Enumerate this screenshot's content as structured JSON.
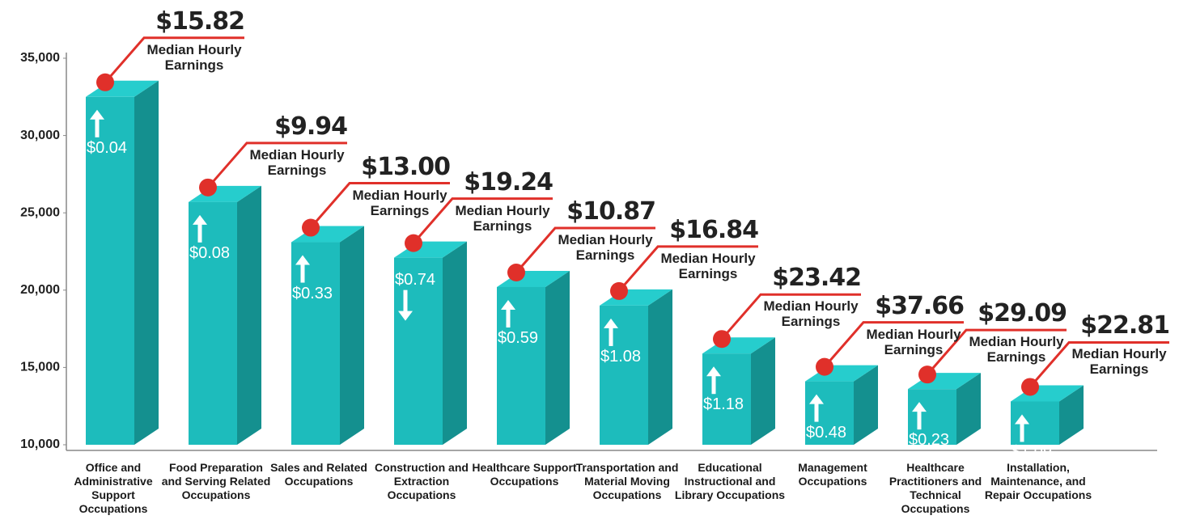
{
  "chart_data": {
    "type": "bar3d",
    "categories": [
      "Office and Administrative Support Occupations",
      "Food Preparation and Serving Related Occupations",
      "Sales and Related Occupations",
      "Construction and Extraction Occupations",
      "Healthcare Support Occupations",
      "Transportation and Material Moving Occupations",
      "Educational Instructional and Library Occupations",
      "Management Occupations",
      "Healthcare Practitioners and Technical Occupations",
      "Installation, Maintenance, and Repair Occupations"
    ],
    "values": [
      32500,
      25700,
      23100,
      22100,
      20200,
      19000,
      15900,
      14100,
      13600,
      12800
    ],
    "color": "#1dbcbc",
    "side_color": "#14908f",
    "top_color": "#26cdcd",
    "callout_color": "#e0302a",
    "ylim": [
      10000,
      35000
    ],
    "yticks": [
      {
        "value": 10000,
        "label": "10,000"
      },
      {
        "value": 15000,
        "label": "15,000"
      },
      {
        "value": 20000,
        "label": "20,000"
      },
      {
        "value": 25000,
        "label": "25,000"
      },
      {
        "value": 30000,
        "label": "30,000"
      },
      {
        "value": 35000,
        "label": "35,000"
      }
    ],
    "earnings_label": "Median Hourly Earnings",
    "earnings": [
      15.82,
      9.94,
      13.0,
      19.24,
      10.87,
      16.84,
      23.42,
      37.66,
      29.09,
      22.81
    ],
    "earnings_labels": [
      "$15.82",
      "$9.94",
      "$13.00",
      "$19.24",
      "$10.87",
      "$16.84",
      "$23.42",
      "$37.66",
      "$29.09",
      "$22.81"
    ],
    "changes": [
      0.04,
      0.08,
      0.33,
      0.74,
      0.59,
      1.08,
      1.18,
      0.48,
      0.23,
      1.09
    ],
    "change_labels": [
      "$0.04",
      "$0.08",
      "$0.33",
      "$0.74",
      "$0.59",
      "$1.08",
      "$1.18",
      "$0.48",
      "$0.23",
      "$1.09"
    ],
    "change_directions": [
      "up",
      "up",
      "up",
      "down",
      "up",
      "up",
      "up",
      "up",
      "up",
      "up"
    ]
  }
}
